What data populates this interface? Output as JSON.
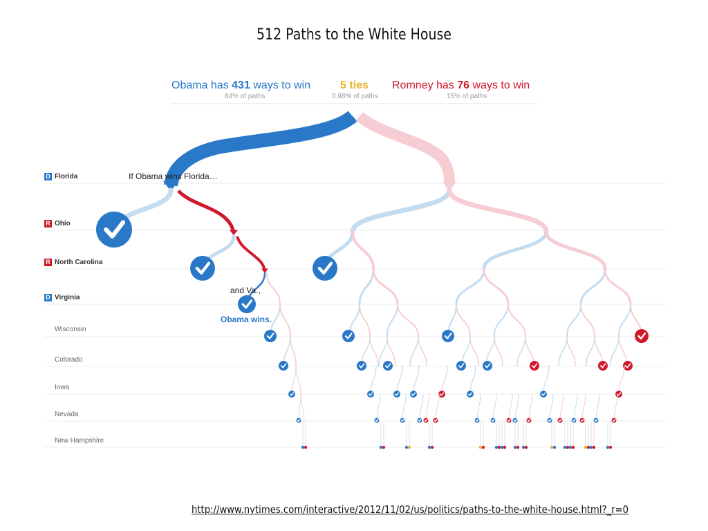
{
  "title": "512 Paths to the White House",
  "header": {
    "obama": {
      "prefix": "Obama has ",
      "count": "431",
      "suffix": " ways to win",
      "sub": "84% of paths",
      "color": "#2a78c8"
    },
    "ties": {
      "text": "5 ties",
      "sub": "0.98% of paths",
      "color": "#e8b22c"
    },
    "romney": {
      "prefix": "Romney has ",
      "count": "76",
      "suffix": " ways to win",
      "sub": "15% of paths",
      "color": "#d0192c"
    }
  },
  "states": [
    {
      "name": "Florida",
      "badge": "D",
      "badge_color": "#2a78c8",
      "bold": true
    },
    {
      "name": "Ohio",
      "badge": "R",
      "badge_color": "#d0192c",
      "bold": true
    },
    {
      "name": "North Carolina",
      "badge": "R",
      "badge_color": "#d0192c",
      "bold": true
    },
    {
      "name": "Virginia",
      "badge": "D",
      "badge_color": "#2a78c8",
      "bold": true
    },
    {
      "name": "Wisconsin",
      "badge": "",
      "bold": false
    },
    {
      "name": "Colorado",
      "badge": "",
      "bold": false
    },
    {
      "name": "Iowa",
      "badge": "",
      "bold": false
    },
    {
      "name": "Nevada",
      "badge": "",
      "bold": false
    },
    {
      "name": "New Hampshire",
      "badge": "",
      "bold": false
    }
  ],
  "annotations": {
    "florida": "If Obama wins Florida…",
    "virginia": "and Va.,",
    "result": "Obama wins."
  },
  "colors": {
    "obama": "#2a78c8",
    "obama_light": "#c3dcf0",
    "romney": "#d0192c",
    "romney_light": "#f5cdd3",
    "tie": "#e8b22c"
  },
  "url": "http://www.nytimes.com/interactive/2012/11/02/us/politics/paths-to-the-white-house.html?_r=0"
}
